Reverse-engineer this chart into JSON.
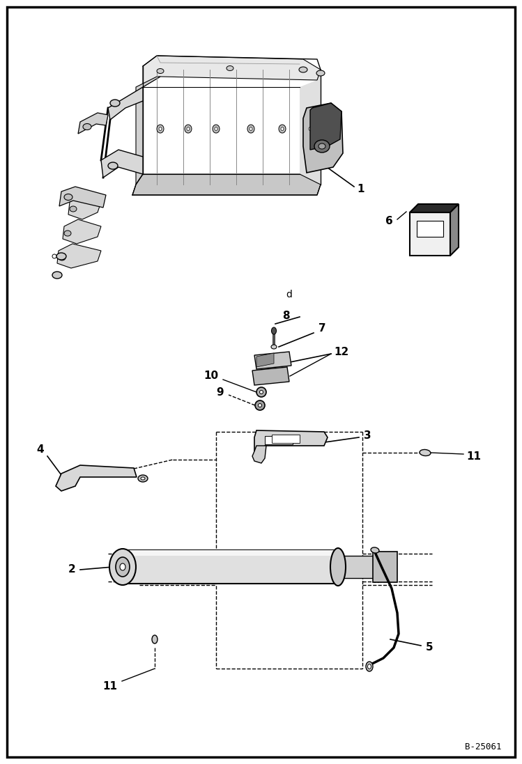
{
  "bg_color": "#ffffff",
  "border_color": "#000000",
  "ref_code": "B-25061",
  "fig_size": [
    7.49,
    10.97
  ],
  "dpi": 100,
  "arm_color": "#e0e0e0",
  "arm_dark": "#a0a0a0",
  "box_dark": "#2a2a2a",
  "box_mid": "#888888",
  "box_light": "#f0f0f0",
  "cyl_color": "#d8d8d8",
  "part_colors": {
    "bracket": "#d0d0d0",
    "pad": "#c0c0c0",
    "bolt": "#909090"
  }
}
